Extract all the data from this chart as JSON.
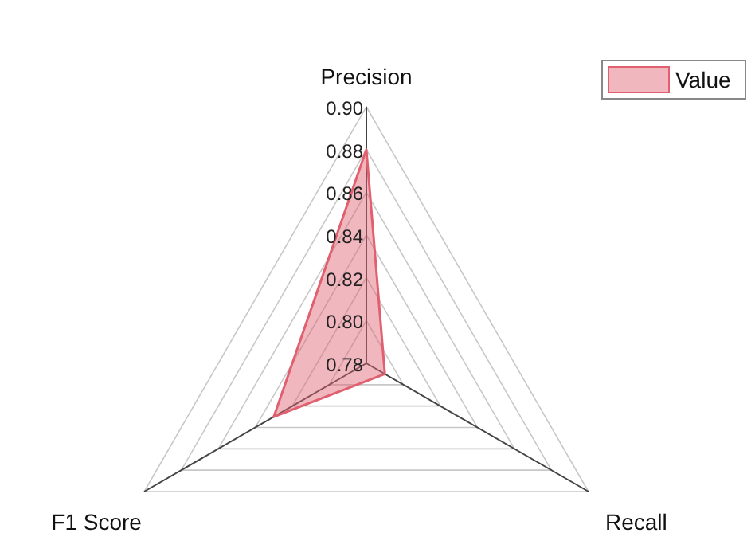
{
  "chart_data": {
    "type": "radar",
    "categories": [
      "Precision",
      "Recall",
      "F1 Score"
    ],
    "series": [
      {
        "name": "Value",
        "color": "#e06070",
        "values": [
          0.88,
          0.79,
          0.83
        ]
      }
    ],
    "ylim": [
      0.78,
      0.9
    ],
    "yticks": [
      0.78,
      {
        "value": 0.8,
        "label": "0.80"
      },
      0.82,
      0.84,
      0.86,
      0.88,
      {
        "value": 0.9,
        "label": "0.90"
      }
    ],
    "grid": true,
    "legend": "top right"
  }
}
